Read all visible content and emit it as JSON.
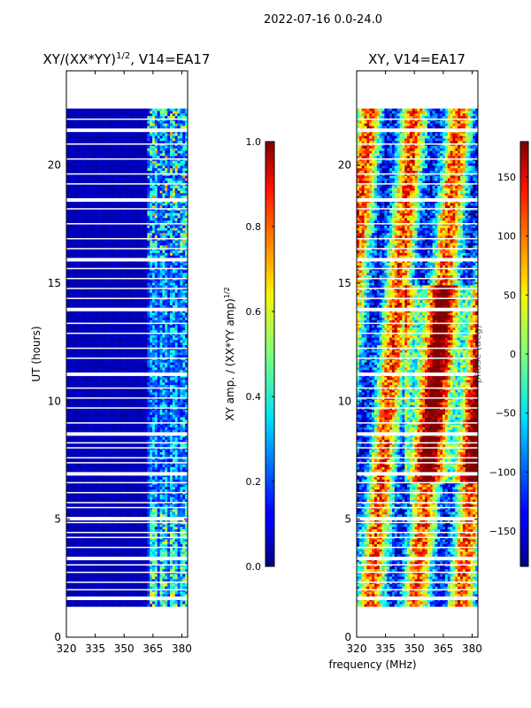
{
  "suptitle": "2022-07-16 0.0-24.0",
  "shared_xlabel": "frequency (MHz)",
  "colors": {
    "background": "#00008f",
    "gap": "#ffffff",
    "frame": "#000000"
  },
  "chart_data": [
    {
      "type": "heatmap",
      "title_main": "XY/(XX*YY)",
      "title_sup": "1/2",
      "title_tail": ", V14=EA17",
      "xlabel": "",
      "ylabel": "UT (hours)",
      "xlim": [
        320,
        383
      ],
      "ylim": [
        0,
        24
      ],
      "xticks": [
        320,
        335,
        350,
        365,
        380
      ],
      "yticks": [
        0,
        5,
        10,
        15,
        20
      ],
      "data_time_range": [
        1.3,
        22.4
      ],
      "active_band_mhz": [
        361,
        383
      ],
      "peak_value": 0.7,
      "colorbar": {
        "label_main": "XY amp. / (XX*YY amp)",
        "label_sup": "1/2",
        "range": [
          0.0,
          1.0
        ],
        "ticks": [
          "0.0",
          "0.2",
          "0.4",
          "0.6",
          "0.8",
          "1.0"
        ]
      }
    },
    {
      "type": "heatmap",
      "title_main": "XY, V14=EA17",
      "title_sup": "",
      "title_tail": "",
      "xlabel": "frequency (MHz)",
      "ylabel": "",
      "xlim": [
        320,
        383
      ],
      "ylim": [
        0,
        24
      ],
      "xticks": [
        320,
        335,
        350,
        365,
        380
      ],
      "yticks": [
        0,
        5,
        10,
        15,
        20
      ],
      "data_time_range": [
        1.3,
        22.4
      ],
      "colorbar": {
        "label_main": "phase (deg)",
        "label_sup": "",
        "range": [
          -180,
          180
        ],
        "ticks": [
          "−150",
          "−100",
          "−50",
          "0",
          "50",
          "100",
          "150"
        ],
        "tick_values": [
          -150,
          -100,
          -50,
          0,
          50,
          100,
          150
        ]
      }
    }
  ]
}
